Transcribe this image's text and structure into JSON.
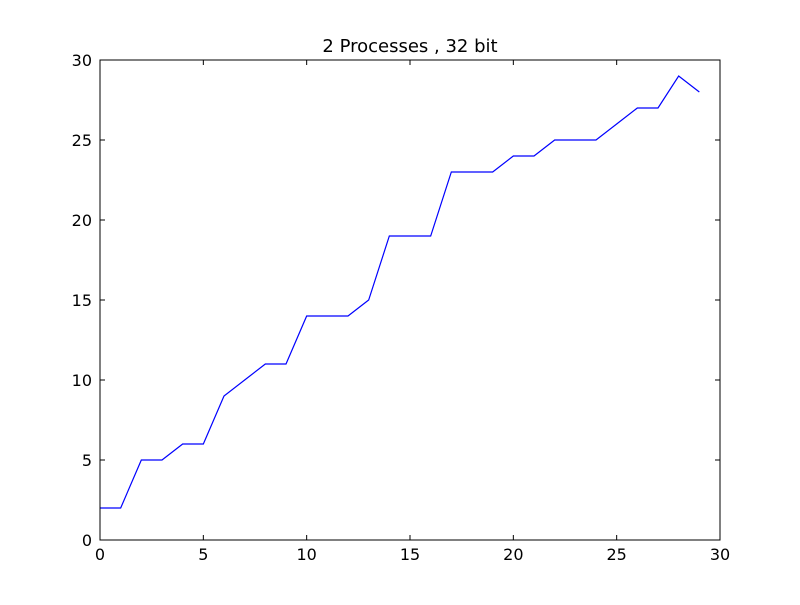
{
  "chart_data": {
    "type": "line",
    "title": "2 Processes , 32 bit",
    "xlabel": "",
    "ylabel": "",
    "xlim": [
      0,
      30
    ],
    "ylim": [
      0,
      30
    ],
    "xticks": [
      0,
      5,
      10,
      15,
      20,
      25,
      30
    ],
    "yticks": [
      0,
      5,
      10,
      15,
      20,
      25,
      30
    ],
    "grid": false,
    "legend": "none",
    "series": [
      {
        "color": "#0000ff",
        "x": [
          0,
          1,
          2,
          3,
          4,
          5,
          6,
          7,
          8,
          9,
          10,
          11,
          12,
          13,
          14,
          15,
          16,
          17,
          18,
          19,
          20,
          21,
          22,
          23,
          24,
          25,
          26,
          27,
          28,
          29
        ],
        "y": [
          2,
          2,
          5,
          5,
          6,
          6,
          9,
          10,
          11,
          11,
          14,
          14,
          14,
          15,
          19,
          19,
          19,
          23,
          23,
          23,
          24,
          24,
          25,
          25,
          25,
          26,
          27,
          27,
          29,
          28
        ]
      }
    ]
  }
}
